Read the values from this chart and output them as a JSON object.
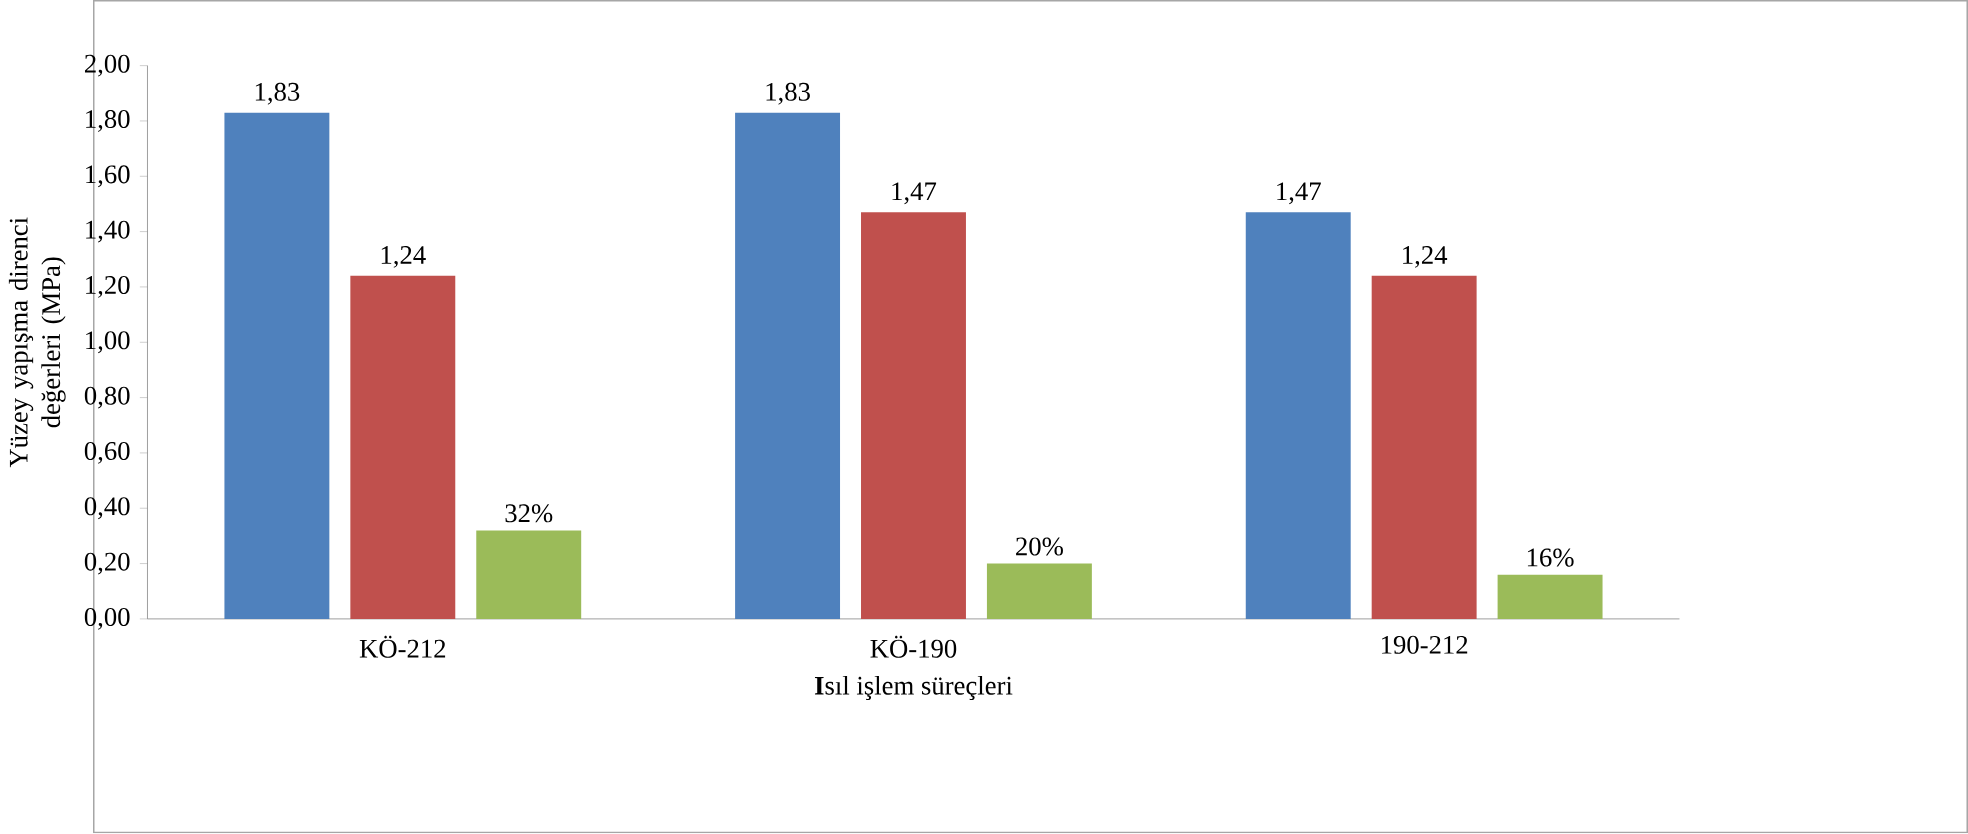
{
  "chart_data": {
    "type": "bar",
    "xlabel": "**I**sıl işlem süreçleri",
    "ylabel": "Yüzey yapışma direnci değerleri (MPa)",
    "categories": [
      "KÖ-212",
      "KÖ-190",
      "190-212"
    ],
    "series": [
      {
        "color": "#4f81bd",
        "values": [
          1.83,
          1.83,
          1.47
        ],
        "value_labels": [
          "1,83",
          "1,83",
          "1,47"
        ]
      },
      {
        "color": "#c0504d",
        "values": [
          1.24,
          1.47,
          1.24
        ],
        "value_labels": [
          "1,24",
          "1,47",
          "1,24"
        ]
      },
      {
        "color": "#9bbb59",
        "values": [
          0.32,
          0.2,
          0.16
        ],
        "value_labels": [
          "32%",
          "20%",
          "16%"
        ]
      }
    ],
    "ylim": [
      0,
      2
    ],
    "yticks": [
      {
        "value": 0,
        "label": "0,00"
      },
      {
        "value": 0.2,
        "label": "0,20"
      },
      {
        "value": 0.4,
        "label": "0,40"
      },
      {
        "value": 0.6,
        "label": "0,60"
      },
      {
        "value": 0.8,
        "label": "0,80"
      },
      {
        "value": 1.0,
        "label": "1,00"
      },
      {
        "value": 1.2,
        "label": "1,20"
      },
      {
        "value": 1.4,
        "label": "1,40"
      },
      {
        "value": 1.6,
        "label": "1,60"
      },
      {
        "value": 1.8,
        "label": "1,80"
      },
      {
        "value": 2.0,
        "label": "2,00"
      }
    ],
    "grid": false
  }
}
